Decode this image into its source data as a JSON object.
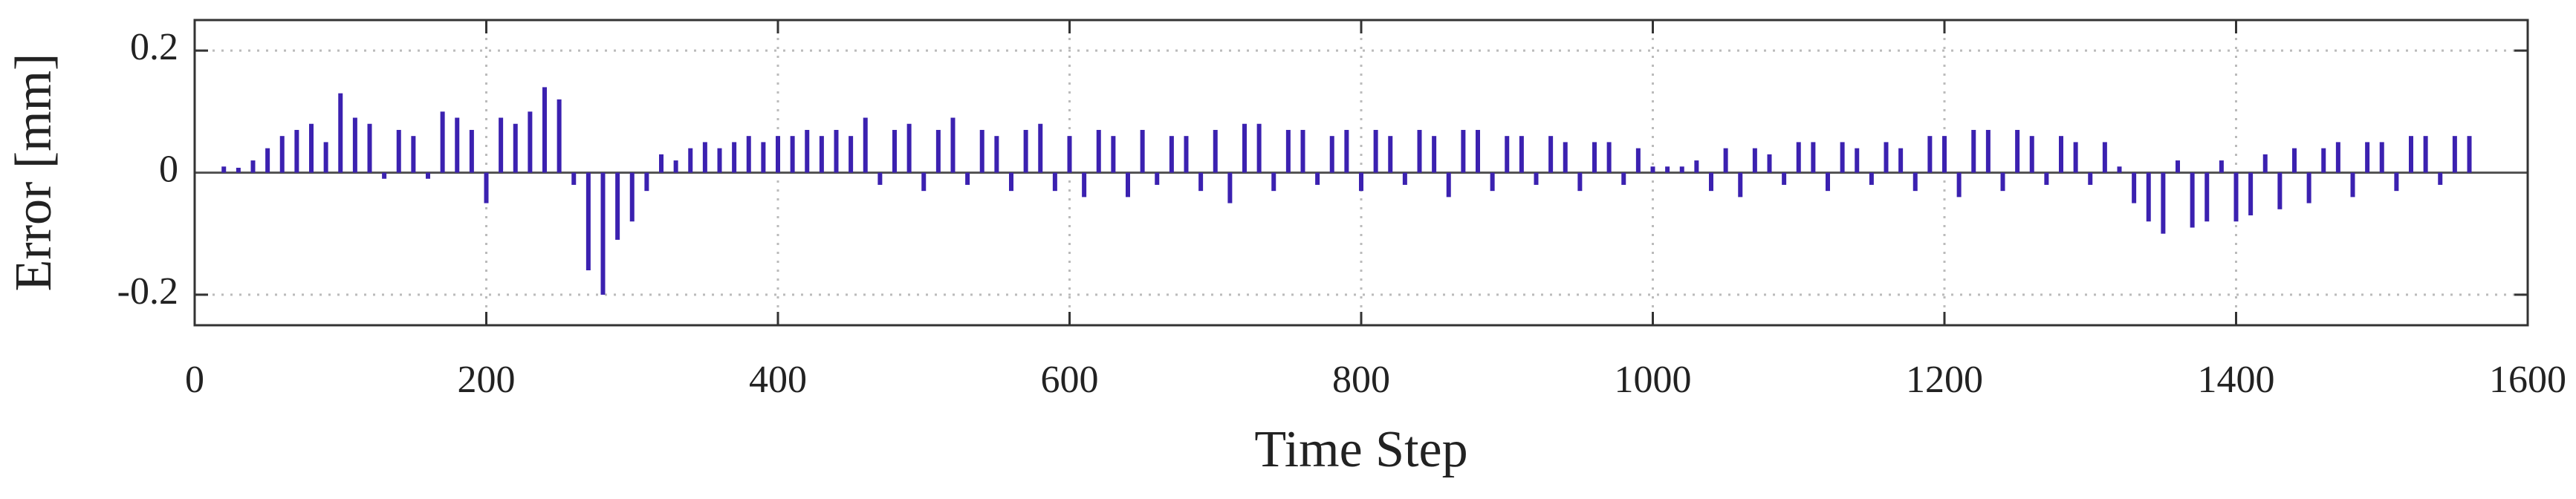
{
  "chart_data": {
    "type": "bar",
    "xlabel": "Time Step",
    "ylabel": "Error [mm]",
    "color": "#3b21b0",
    "grid": true,
    "xlim": [
      0,
      1600
    ],
    "xticks": [
      0,
      200,
      400,
      600,
      800,
      1000,
      1200,
      1400,
      1600
    ],
    "ylim": [
      -0.25,
      0.25
    ],
    "yticks": [
      -0.2,
      0,
      0.2
    ],
    "x": [
      20,
      30,
      40,
      50,
      60,
      70,
      80,
      90,
      100,
      110,
      120,
      130,
      140,
      150,
      160,
      170,
      180,
      190,
      200,
      210,
      220,
      230,
      240,
      250,
      260,
      270,
      280,
      290,
      300,
      310,
      320,
      330,
      340,
      350,
      360,
      370,
      380,
      390,
      400,
      410,
      420,
      430,
      440,
      450,
      460,
      470,
      480,
      490,
      500,
      510,
      520,
      530,
      540,
      550,
      560,
      570,
      580,
      590,
      600,
      610,
      620,
      630,
      640,
      650,
      660,
      670,
      680,
      690,
      700,
      710,
      720,
      730,
      740,
      750,
      760,
      770,
      780,
      790,
      800,
      810,
      820,
      830,
      840,
      850,
      860,
      870,
      880,
      890,
      900,
      910,
      920,
      930,
      940,
      950,
      960,
      970,
      980,
      990,
      1000,
      1010,
      1020,
      1030,
      1040,
      1050,
      1060,
      1070,
      1080,
      1090,
      1100,
      1110,
      1120,
      1130,
      1140,
      1150,
      1160,
      1170,
      1180,
      1190,
      1200,
      1210,
      1220,
      1230,
      1240,
      1250,
      1260,
      1270,
      1280,
      1290,
      1300,
      1310,
      1320,
      1330,
      1340,
      1350,
      1360,
      1370,
      1380,
      1390,
      1400,
      1410,
      1420,
      1430,
      1440,
      1450,
      1460,
      1470,
      1480,
      1490,
      1500,
      1510,
      1520,
      1530,
      1540,
      1550,
      1560
    ],
    "values": [
      0.01,
      0.008,
      0.02,
      0.04,
      0.06,
      0.07,
      0.08,
      0.05,
      0.13,
      0.09,
      0.08,
      -0.01,
      0.07,
      0.06,
      -0.01,
      0.1,
      0.09,
      0.07,
      -0.05,
      0.09,
      0.08,
      0.1,
      0.14,
      0.12,
      -0.02,
      -0.16,
      -0.2,
      -0.11,
      -0.08,
      -0.03,
      0.03,
      0.02,
      0.04,
      0.05,
      0.04,
      0.05,
      0.06,
      0.05,
      0.06,
      0.06,
      0.07,
      0.06,
      0.07,
      0.06,
      0.09,
      -0.02,
      0.07,
      0.08,
      -0.03,
      0.07,
      0.09,
      -0.02,
      0.07,
      0.06,
      -0.03,
      0.07,
      0.08,
      -0.03,
      0.06,
      -0.04,
      0.07,
      0.06,
      -0.04,
      0.07,
      -0.02,
      0.06,
      0.06,
      -0.03,
      0.07,
      -0.05,
      0.08,
      0.08,
      -0.03,
      0.07,
      0.07,
      -0.02,
      0.06,
      0.07,
      -0.03,
      0.07,
      0.06,
      -0.02,
      0.07,
      0.06,
      -0.04,
      0.07,
      0.07,
      -0.03,
      0.06,
      0.06,
      -0.02,
      0.06,
      0.05,
      -0.03,
      0.05,
      0.05,
      -0.02,
      0.04,
      0.01,
      0.01,
      0.01,
      0.02,
      -0.03,
      0.04,
      -0.04,
      0.04,
      0.03,
      -0.02,
      0.05,
      0.05,
      -0.03,
      0.05,
      0.04,
      -0.02,
      0.05,
      0.04,
      -0.03,
      0.06,
      0.06,
      -0.04,
      0.07,
      0.07,
      -0.03,
      0.07,
      0.06,
      -0.02,
      0.06,
      0.05,
      -0.02,
      0.05,
      0.01,
      -0.05,
      -0.08,
      -0.1,
      0.02,
      -0.09,
      -0.08,
      0.02,
      -0.08,
      -0.07,
      0.03,
      -0.06,
      0.04,
      -0.05,
      0.04,
      0.05,
      -0.04,
      0.05,
      0.05,
      -0.03,
      0.06,
      0.06,
      -0.02,
      0.06,
      0.06
    ]
  }
}
